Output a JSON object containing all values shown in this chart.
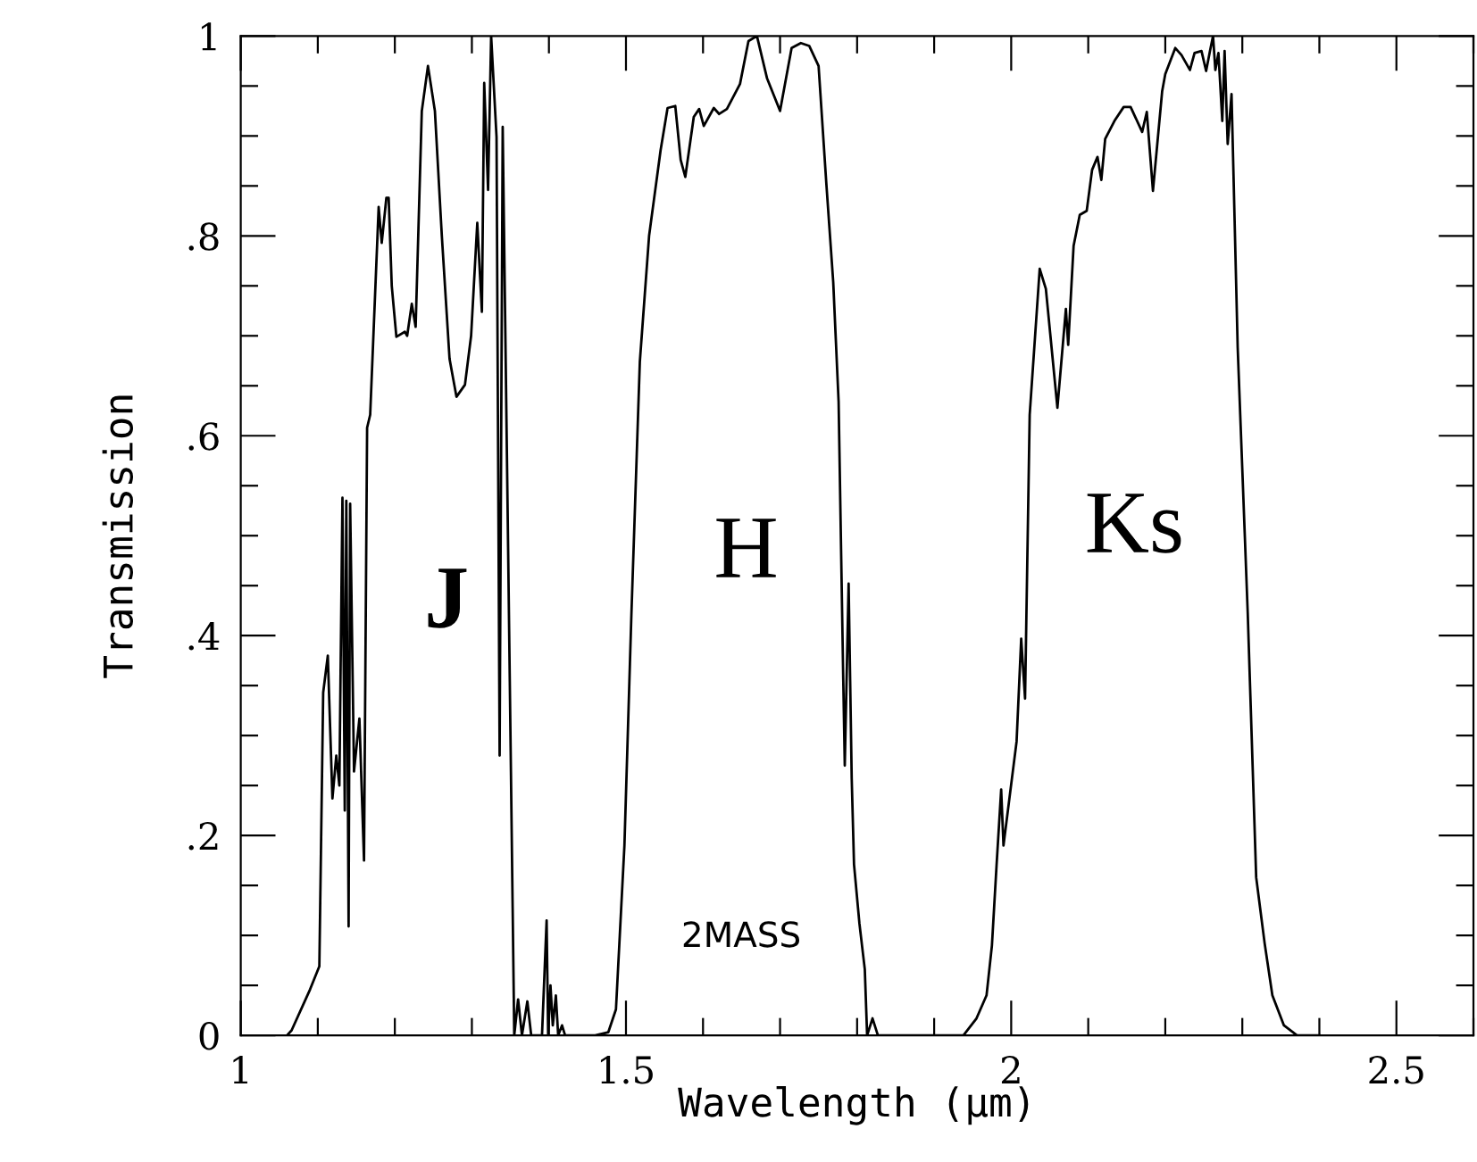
{
  "chart_data": {
    "type": "line",
    "xlabel": "Wavelength (μm)",
    "ylabel": "Transmission",
    "xlim": [
      1,
      2.6
    ],
    "ylim": [
      0,
      1
    ],
    "xticks": [
      1,
      {
        "value": 1.1,
        "label": null
      },
      {
        "value": 1.2,
        "label": null
      },
      {
        "value": 1.3,
        "label": null
      },
      {
        "value": 1.4,
        "label": null
      },
      1.5,
      {
        "value": 1.6,
        "label": null
      },
      {
        "value": 1.7,
        "label": null
      },
      {
        "value": 1.8,
        "label": null
      },
      {
        "value": 1.9,
        "label": null
      },
      2,
      {
        "value": 2.1,
        "label": null
      },
      {
        "value": 2.2,
        "label": null
      },
      {
        "value": 2.3,
        "label": null
      },
      {
        "value": 2.4,
        "label": null
      },
      2.5,
      {
        "value": 2.6,
        "label": null
      }
    ],
    "yticks": [
      0,
      {
        "value": 0.05,
        "label": null
      },
      {
        "value": 0.1,
        "label": null
      },
      {
        "value": 0.15,
        "label": null
      },
      {
        "value": 0.2,
        "label": ".2"
      },
      {
        "value": 0.25,
        "label": null
      },
      {
        "value": 0.3,
        "label": null
      },
      {
        "value": 0.35,
        "label": null
      },
      {
        "value": 0.4,
        "label": ".4"
      },
      {
        "value": 0.45,
        "label": null
      },
      {
        "value": 0.5,
        "label": null
      },
      {
        "value": 0.55,
        "label": null
      },
      {
        "value": 0.6,
        "label": ".6"
      },
      {
        "value": 0.65,
        "label": null
      },
      {
        "value": 0.7,
        "label": null
      },
      {
        "value": 0.75,
        "label": null
      },
      {
        "value": 0.8,
        "label": ".8"
      },
      {
        "value": 0.85,
        "label": null
      },
      {
        "value": 0.9,
        "label": null
      },
      {
        "value": 0.95,
        "label": null
      },
      1
    ],
    "grid": false,
    "legend": false,
    "marker": "none",
    "line_style": "solid",
    "annotations": [
      "J",
      "H",
      "Ks",
      "2MASS"
    ],
    "series": [
      {
        "color": "#000000",
        "x": [
          1.06,
          1.066,
          1.09,
          1.102,
          1.107,
          1.113,
          1.119,
          1.124,
          1.128,
          1.132,
          1.135,
          1.137,
          1.14,
          1.142,
          1.147,
          1.154,
          1.16,
          1.164,
          1.168,
          1.179,
          1.183,
          1.189,
          1.192,
          1.196,
          1.202,
          1.213,
          1.216,
          1.222,
          1.227,
          1.235,
          1.243,
          1.252,
          1.261,
          1.271,
          1.28,
          1.291,
          1.299,
          1.307,
          1.313,
          1.316,
          1.321,
          1.325,
          1.332,
          1.336,
          1.34,
          1.347,
          1.355,
          1.36,
          1.365,
          1.372,
          1.377,
          1.391,
          1.397,
          1.399,
          1.402,
          1.405,
          1.409,
          1.412,
          1.417,
          1.421,
          1.46,
          1.477,
          1.487,
          1.498,
          1.507,
          1.518,
          1.53,
          1.545,
          1.554,
          1.564,
          1.571,
          1.577,
          1.588,
          1.595,
          1.601,
          1.614,
          1.621,
          1.631,
          1.648,
          1.659,
          1.67,
          1.683,
          1.7,
          1.715,
          1.727,
          1.738,
          1.75,
          1.76,
          1.769,
          1.776,
          1.782,
          1.784,
          1.789,
          1.793,
          1.796,
          1.803,
          1.81,
          1.813,
          1.82,
          1.827,
          1.938,
          1.955,
          1.968,
          1.975,
          1.981,
          1.987,
          1.99,
          2.007,
          2.013,
          2.018,
          2.024,
          2.037,
          2.045,
          2.06,
          2.071,
          2.074,
          2.081,
          2.089,
          2.098,
          2.105,
          2.112,
          2.117,
          2.122,
          2.134,
          2.146,
          2.155,
          2.17,
          2.176,
          2.184,
          2.196,
          2.2,
          2.213,
          2.221,
          2.232,
          2.238,
          2.247,
          2.253,
          2.258,
          2.262,
          2.265,
          2.269,
          2.274,
          2.277,
          2.281,
          2.286,
          2.294,
          2.307,
          2.318,
          2.329,
          2.339,
          2.354,
          2.371,
          2.4
        ],
        "values": [
          0,
          0.005,
          0.046,
          0.069,
          0.343,
          0.38,
          0.237,
          0.28,
          0.25,
          0.538,
          0.225,
          0.535,
          0.109,
          0.532,
          0.264,
          0.317,
          0.175,
          0.608,
          0.621,
          0.829,
          0.793,
          0.838,
          0.838,
          0.75,
          0.699,
          0.704,
          0.7,
          0.732,
          0.709,
          0.925,
          0.97,
          0.925,
          0.8,
          0.677,
          0.639,
          0.651,
          0.7,
          0.813,
          0.724,
          0.953,
          0.846,
          1.0,
          0.899,
          0.28,
          0.909,
          0.489,
          0,
          0.036,
          0,
          0.034,
          0,
          0,
          0.115,
          0,
          0.05,
          0.01,
          0.04,
          0,
          0.01,
          0,
          0,
          0.003,
          0.026,
          0.19,
          0.42,
          0.674,
          0.8,
          0.886,
          0.928,
          0.93,
          0.876,
          0.859,
          0.919,
          0.927,
          0.91,
          0.928,
          0.922,
          0.927,
          0.952,
          0.995,
          1.0,
          0.958,
          0.925,
          0.988,
          0.993,
          0.99,
          0.97,
          0.853,
          0.754,
          0.634,
          0.357,
          0.27,
          0.452,
          0.257,
          0.171,
          0.112,
          0.066,
          0,
          0.017,
          0,
          0,
          0.017,
          0.04,
          0.09,
          0.17,
          0.246,
          0.19,
          0.294,
          0.397,
          0.337,
          0.621,
          0.767,
          0.747,
          0.628,
          0.727,
          0.691,
          0.79,
          0.821,
          0.825,
          0.866,
          0.879,
          0.856,
          0.897,
          0.915,
          0.929,
          0.929,
          0.904,
          0.924,
          0.845,
          0.945,
          0.962,
          0.988,
          0.981,
          0.966,
          0.983,
          0.985,
          0.965,
          0.985,
          1.0,
          0.966,
          0.983,
          0.915,
          0.985,
          0.892,
          0.942,
          0.688,
          0.423,
          0.158,
          0.092,
          0.04,
          0.01,
          0,
          0
        ]
      }
    ]
  }
}
